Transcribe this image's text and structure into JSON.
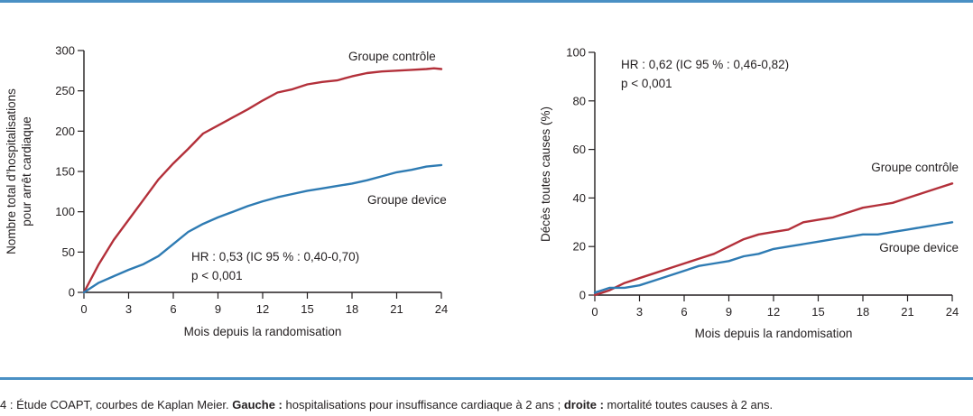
{
  "caption": {
    "prefix": "4 : ",
    "part1": "Étude COAPT, courbes de Kaplan Meier. ",
    "bold1": "Gauche :",
    "part2": " hospitalisations pour insuffisance cardiaque à 2 ans ; ",
    "bold2": "droite :",
    "part3": " mortalité toutes causes à 2 ans."
  },
  "colors": {
    "control": "#b3303a",
    "device": "#2e7bb3",
    "axis": "#231f20",
    "rule": "#4a90c4"
  },
  "chart_data": [
    {
      "type": "line",
      "xlabel": "Mois depuis la randomisation",
      "ylabel_lines": [
        "Nombre total d’hospitalisations",
        "pour arrêt cardiaque"
      ],
      "xlim": [
        0,
        24
      ],
      "ylim": [
        0,
        300
      ],
      "xticks": [
        0,
        3,
        6,
        9,
        12,
        15,
        18,
        21,
        24
      ],
      "yticks": [
        0,
        50,
        100,
        150,
        200,
        250,
        300
      ],
      "annotation": [
        "HR : 0,53 (IC 95 % : 0,40-0,70)",
        "p < 0,001"
      ],
      "series": [
        {
          "name": "Groupe contrôle",
          "color_key": "control",
          "x": [
            0,
            1,
            2,
            3,
            4,
            5,
            6,
            7,
            8,
            9,
            10,
            11,
            12,
            13,
            14,
            15,
            16,
            17,
            18,
            19,
            20,
            21,
            22,
            23,
            23.5,
            24
          ],
          "y": [
            0,
            35,
            65,
            90,
            115,
            140,
            160,
            178,
            197,
            207,
            217,
            227,
            238,
            248,
            252,
            258,
            261,
            263,
            268,
            272,
            274,
            275,
            276,
            277,
            278,
            277
          ]
        },
        {
          "name": "Groupe device",
          "color_key": "device",
          "x": [
            0,
            1,
            2,
            3,
            4,
            5,
            6,
            7,
            8,
            9,
            10,
            11,
            12,
            13,
            14,
            15,
            16,
            17,
            18,
            19,
            20,
            21,
            22,
            23,
            24
          ],
          "y": [
            0,
            12,
            20,
            28,
            35,
            45,
            60,
            75,
            85,
            93,
            100,
            107,
            113,
            118,
            122,
            126,
            129,
            132,
            135,
            139,
            144,
            149,
            152,
            156,
            158
          ]
        }
      ]
    },
    {
      "type": "line",
      "xlabel": "Mois depuis la randomisation",
      "ylabel_lines": [
        "Décès toutes causes (%)"
      ],
      "xlim": [
        0,
        24
      ],
      "ylim": [
        0,
        100
      ],
      "xticks": [
        0,
        3,
        6,
        9,
        12,
        15,
        18,
        21,
        24
      ],
      "yticks": [
        0,
        20,
        40,
        60,
        80,
        100
      ],
      "annotation": [
        "HR : 0,62 (IC 95 % : 0,46-0,82)",
        "p < 0,001"
      ],
      "series": [
        {
          "name": "Groupe contrôle",
          "color_key": "control",
          "x": [
            0,
            0.5,
            1,
            2,
            3,
            4,
            5,
            6,
            7,
            8,
            9,
            10,
            11,
            12,
            13,
            14,
            15,
            16,
            17,
            18,
            19,
            20,
            21,
            22,
            23,
            24
          ],
          "y": [
            0,
            1,
            2,
            5,
            7,
            9,
            11,
            13,
            15,
            17,
            20,
            23,
            25,
            26,
            27,
            30,
            31,
            32,
            34,
            36,
            37,
            38,
            40,
            42,
            44,
            46
          ]
        },
        {
          "name": "Groupe device",
          "color_key": "device",
          "x": [
            0,
            0.5,
            1,
            2,
            3,
            4,
            5,
            6,
            7,
            8,
            9,
            10,
            11,
            12,
            13,
            14,
            15,
            16,
            17,
            18,
            19,
            20,
            21,
            22,
            23,
            24
          ],
          "y": [
            1,
            2,
            3,
            3,
            4,
            6,
            8,
            10,
            12,
            13,
            14,
            16,
            17,
            19,
            20,
            21,
            22,
            23,
            24,
            25,
            25,
            26,
            27,
            28,
            29,
            30
          ]
        }
      ]
    }
  ]
}
